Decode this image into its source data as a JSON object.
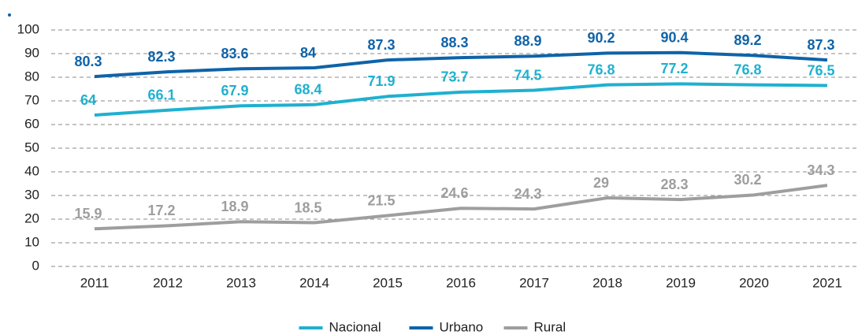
{
  "chart_data": {
    "type": "line",
    "categories": [
      "2011",
      "2012",
      "2013",
      "2014",
      "2015",
      "2016",
      "2017",
      "2018",
      "2019",
      "2020",
      "2021"
    ],
    "series": [
      {
        "name": "Nacional",
        "color": "#1fb0d0",
        "values": [
          64,
          66.1,
          67.9,
          68.4,
          71.9,
          73.7,
          74.5,
          76.8,
          77.2,
          76.8,
          76.5
        ]
      },
      {
        "name": "Urbano",
        "color": "#0f63a8",
        "values": [
          80.3,
          82.3,
          83.6,
          84,
          87.3,
          88.3,
          88.9,
          90.2,
          90.4,
          89.2,
          87.3
        ]
      },
      {
        "name": "Rural",
        "color": "#9e9e9e",
        "values": [
          15.9,
          17.2,
          18.9,
          18.5,
          21.5,
          24.6,
          24.3,
          29,
          28.3,
          30.2,
          34.3
        ]
      }
    ],
    "ylim": [
      0,
      100
    ],
    "yticks": [
      0,
      10,
      20,
      30,
      40,
      50,
      60,
      70,
      80,
      90,
      100
    ],
    "grid": true,
    "legend": "bottom"
  }
}
